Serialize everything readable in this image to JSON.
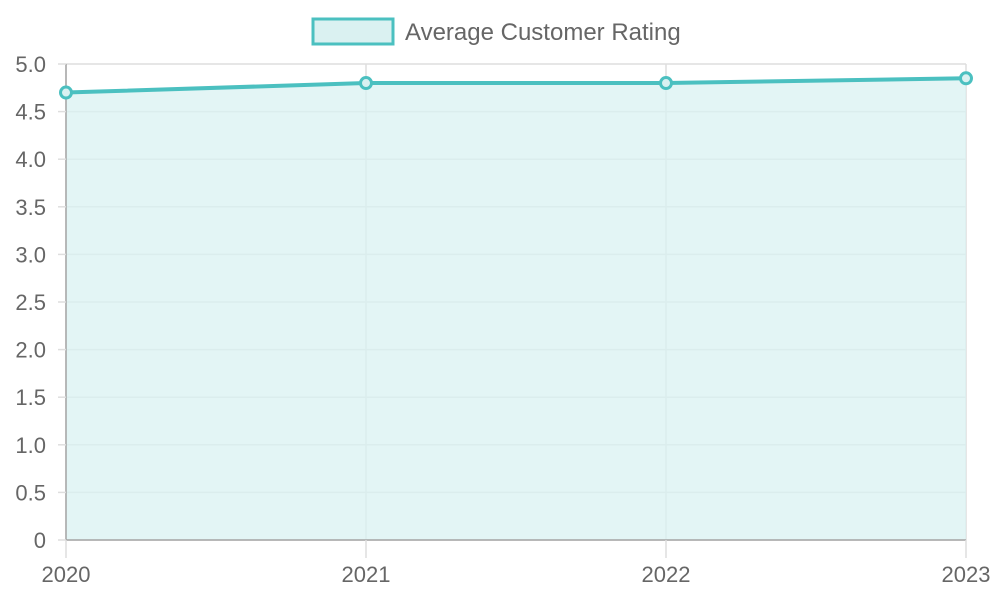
{
  "chart_data": {
    "type": "area",
    "categories": [
      "2020",
      "2021",
      "2022",
      "2023"
    ],
    "series": [
      {
        "name": "Average Customer Rating",
        "values": [
          4.7,
          4.8,
          4.8,
          4.85
        ]
      }
    ],
    "ylim": [
      0,
      5
    ],
    "y_ticks": [
      0,
      0.5,
      1,
      1.5,
      2,
      2.5,
      3,
      3.5,
      4,
      4.5,
      5
    ],
    "y_tick_labels": [
      "0",
      "0.5",
      "1.0",
      "1.5",
      "2.0",
      "2.5",
      "3.0",
      "3.5",
      "4.0",
      "4.5",
      "5.0"
    ],
    "grid": true,
    "legend_position": "top",
    "colors": {
      "line": "#4bc0c0",
      "fill": "#daf1f1",
      "grid": "#dedede",
      "axis": "#a6a6a6",
      "text": "#666666"
    }
  }
}
